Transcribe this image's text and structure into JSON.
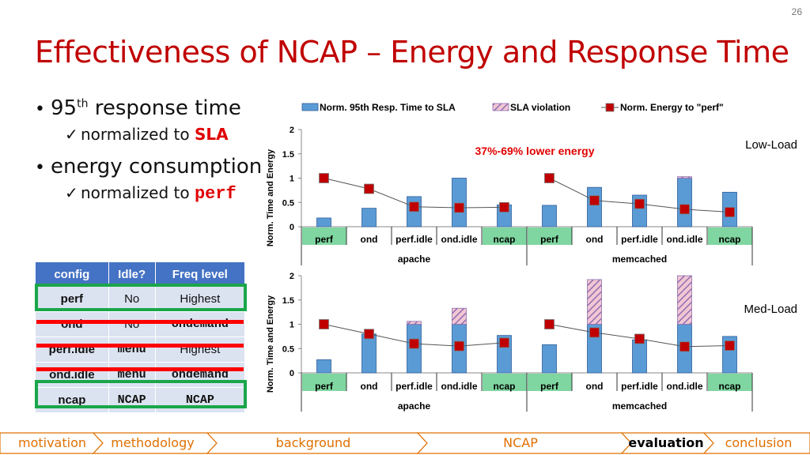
{
  "page_number": "26",
  "title": "Effectiveness of NCAP – Energy and Response Time",
  "bullets": {
    "b1_text": "95",
    "b1_sup": "th",
    "b1_rest": " response time",
    "b1_sub_prefix": "normalized to ",
    "b1_sub_highlight": "SLA",
    "b2_text": "energy consumption",
    "b2_sub_prefix": "normalized to ",
    "b2_sub_highlight": "perf"
  },
  "config_table": {
    "headers": [
      "config",
      "Idle?",
      "Freq level"
    ],
    "rows": [
      [
        "perf",
        "No",
        "Highest"
      ],
      [
        "ond",
        "No",
        "ondemand"
      ],
      [
        "perf.idle",
        "menu",
        "Highest"
      ],
      [
        "ond.idle",
        "menu",
        "ondemand"
      ],
      [
        "ncap",
        "NCAP",
        "NCAP"
      ]
    ]
  },
  "chart_data": [
    {
      "type": "bar",
      "label": "Low-Load",
      "annotation": "37%-69% lower energy",
      "ylabel": "Norm. Time and Energy",
      "ylim": [
        0,
        2
      ],
      "yticks": [
        "0",
        "0.5",
        "1",
        "1.5",
        "2"
      ],
      "groups": [
        "apache",
        "memcached"
      ],
      "categories": [
        "perf",
        "ond",
        "perf.idle",
        "ond.idle",
        "ncap",
        "perf",
        "ond",
        "perf.idle",
        "ond.idle",
        "ncap"
      ],
      "series": [
        {
          "name": "Norm. 95th Resp. Time to SLA",
          "values": [
            0.18,
            0.38,
            0.62,
            1.0,
            0.45,
            0.44,
            0.81,
            0.65,
            1.0,
            0.71
          ]
        },
        {
          "name": "SLA violation",
          "values": [
            0,
            0,
            0,
            0,
            0,
            0,
            0,
            0,
            0.03,
            0
          ]
        },
        {
          "name": "Norm. Energy to \"perf\"",
          "values": [
            1.0,
            0.78,
            0.41,
            0.39,
            0.4,
            1.0,
            0.54,
            0.47,
            0.36,
            0.3
          ]
        }
      ]
    },
    {
      "type": "bar",
      "label": "Med-Load",
      "ylabel": "Norm. Time and Energy",
      "ylim": [
        0,
        2
      ],
      "yticks": [
        "0",
        "0.5",
        "1",
        "1.5",
        "2"
      ],
      "groups": [
        "apache",
        "memcached"
      ],
      "categories": [
        "perf",
        "ond",
        "perf.idle",
        "ond.idle",
        "ncap",
        "perf",
        "ond",
        "perf.idle",
        "ond.idle",
        "ncap"
      ],
      "series": [
        {
          "name": "Norm. 95th Resp. Time to SLA",
          "values": [
            0.27,
            0.8,
            1.0,
            1.0,
            0.77,
            0.58,
            1.0,
            0.68,
            1.0,
            0.75
          ]
        },
        {
          "name": "SLA violation",
          "values": [
            0,
            0,
            0.06,
            0.33,
            0,
            0,
            0.92,
            0,
            1.0,
            0
          ]
        },
        {
          "name": "Norm. Energy to \"perf\"",
          "values": [
            1.0,
            0.8,
            0.6,
            0.55,
            0.62,
            1.0,
            0.83,
            0.7,
            0.54,
            0.56
          ]
        }
      ]
    }
  ],
  "legend": [
    "Norm. 95th Resp. Time to SLA",
    "SLA violation",
    "Norm. Energy to \"perf\""
  ],
  "colors": {
    "bar": "#5b9bd5",
    "bar_stroke": "#2f5f9a",
    "violation": "#8e6fb0",
    "marker": "#c00000",
    "highlight": "#7fd6a0",
    "title": "#c00000"
  },
  "nav": {
    "items": [
      "motivation",
      "methodology",
      "background",
      "NCAP",
      "evaluation",
      "conclusion"
    ],
    "active": "evaluation"
  }
}
